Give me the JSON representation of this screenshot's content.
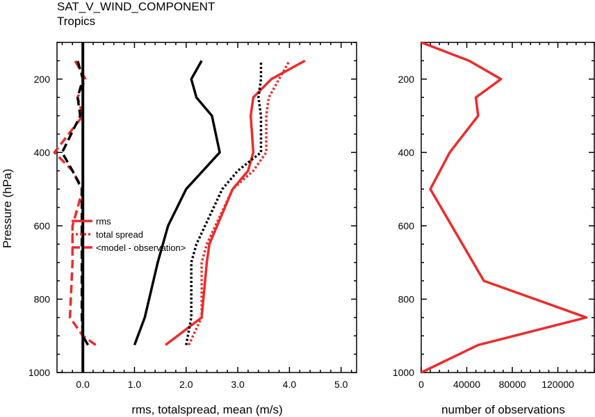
{
  "title": "SAT_V_WIND_COMPONENT",
  "subtitle": "Tropics",
  "colors": {
    "red": "#ee2a2a",
    "black": "#000000"
  },
  "chart_data": [
    {
      "type": "line",
      "xlabel": "rms, totalspread, mean (m/s)",
      "ylabel": "Pressure (hPa)",
      "xlim": [
        -0.5,
        5.3
      ],
      "ylim": [
        1000,
        100
      ],
      "xticks": [
        0,
        1,
        2,
        3,
        4,
        5
      ],
      "xtick_labels": [
        "0.0",
        "1.0",
        "2.0",
        "3.0",
        "4.0",
        "5.0"
      ],
      "yticks": [
        200,
        400,
        600,
        800,
        1000
      ],
      "ytick_labels": [
        "200",
        "400",
        "600",
        "800",
        "1000"
      ],
      "legend": {
        "placement": "center-left",
        "entries": [
          "rms",
          "total spread",
          "<model - observation>"
        ]
      },
      "series": [
        {
          "name": "rms",
          "color": "#ee2a2a",
          "dash": "solid",
          "points": [
            [
              1.6,
              925
            ],
            [
              2.3,
              850
            ],
            [
              2.4,
              700
            ],
            [
              2.45,
              650
            ],
            [
              2.9,
              500
            ],
            [
              3.2,
              450
            ],
            [
              3.3,
              400
            ],
            [
              3.25,
              300
            ],
            [
              3.3,
              250
            ],
            [
              3.65,
              200
            ],
            [
              4.3,
              150
            ]
          ]
        },
        {
          "name": "total spread",
          "color": "#ee2a2a",
          "dash": "dotted",
          "points": [
            [
              2.05,
              925
            ],
            [
              2.3,
              850
            ],
            [
              2.3,
              700
            ],
            [
              2.4,
              650
            ],
            [
              2.9,
              500
            ],
            [
              3.3,
              450
            ],
            [
              3.55,
              400
            ],
            [
              3.55,
              300
            ],
            [
              3.6,
              250
            ],
            [
              3.8,
              200
            ],
            [
              4.0,
              150
            ]
          ]
        },
        {
          "name": "<model - observation>",
          "color": "#ee2a2a",
          "dash": "dashed",
          "points": [
            [
              0.25,
              925
            ],
            [
              0.0,
              900
            ],
            [
              -0.25,
              850
            ],
            [
              -0.2,
              700
            ],
            [
              -0.2,
              600
            ],
            [
              0.0,
              500
            ],
            [
              -0.2,
              450
            ],
            [
              -0.55,
              400
            ],
            [
              0.0,
              300
            ],
            [
              -0.1,
              250
            ],
            [
              0.05,
              200
            ],
            [
              -0.15,
              150
            ]
          ]
        },
        {
          "color": "#000000",
          "dash": "solid",
          "points": [
            [
              1.0,
              925
            ],
            [
              1.2,
              850
            ],
            [
              1.45,
              700
            ],
            [
              1.65,
              600
            ],
            [
              2.0,
              500
            ],
            [
              2.65,
              400
            ],
            [
              2.5,
              300
            ],
            [
              2.2,
              250
            ],
            [
              2.1,
              200
            ],
            [
              2.3,
              150
            ]
          ]
        },
        {
          "color": "#000000",
          "dash": "dotted",
          "points": [
            [
              2.0,
              925
            ],
            [
              2.1,
              850
            ],
            [
              2.1,
              700
            ],
            [
              2.2,
              650
            ],
            [
              2.7,
              500
            ],
            [
              3.0,
              450
            ],
            [
              3.45,
              400
            ],
            [
              3.45,
              300
            ],
            [
              3.4,
              250
            ],
            [
              3.45,
              200
            ],
            [
              3.45,
              150
            ]
          ]
        },
        {
          "color": "#000000",
          "dash": "dashed",
          "points": [
            [
              0.1,
              925
            ],
            [
              0.0,
              900
            ],
            [
              -0.02,
              850
            ],
            [
              -0.02,
              700
            ],
            [
              -0.02,
              600
            ],
            [
              -0.02,
              500
            ],
            [
              -0.2,
              450
            ],
            [
              -0.4,
              400
            ],
            [
              -0.05,
              300
            ],
            [
              -0.1,
              250
            ],
            [
              0.0,
              200
            ],
            [
              -0.1,
              150
            ]
          ]
        },
        {
          "color": "#000000",
          "dash": "solid",
          "width": "thick",
          "points": [
            [
              0.0,
              1000
            ],
            [
              0.0,
              100
            ]
          ]
        }
      ]
    },
    {
      "type": "line",
      "xlabel": "number of observations",
      "xlim": [
        0,
        152000
      ],
      "ylim": [
        1000,
        100
      ],
      "xticks": [
        0,
        40000,
        80000,
        120000
      ],
      "xtick_labels": [
        "0",
        "40000",
        "80000",
        "120000"
      ],
      "yticks": [
        200,
        400,
        600,
        800,
        1000
      ],
      "ytick_labels": [
        "200",
        "400",
        "600",
        "800",
        "1000"
      ],
      "series": [
        {
          "color": "#ee2a2a",
          "dash": "solid",
          "points": [
            [
              0,
              1000
            ],
            [
              50000,
              925
            ],
            [
              145000,
              850
            ],
            [
              55000,
              750
            ],
            [
              8000,
              500
            ],
            [
              25000,
              400
            ],
            [
              50000,
              300
            ],
            [
              48000,
              250
            ],
            [
              70000,
              200
            ],
            [
              42000,
              150
            ],
            [
              0,
              100
            ]
          ]
        }
      ]
    }
  ]
}
